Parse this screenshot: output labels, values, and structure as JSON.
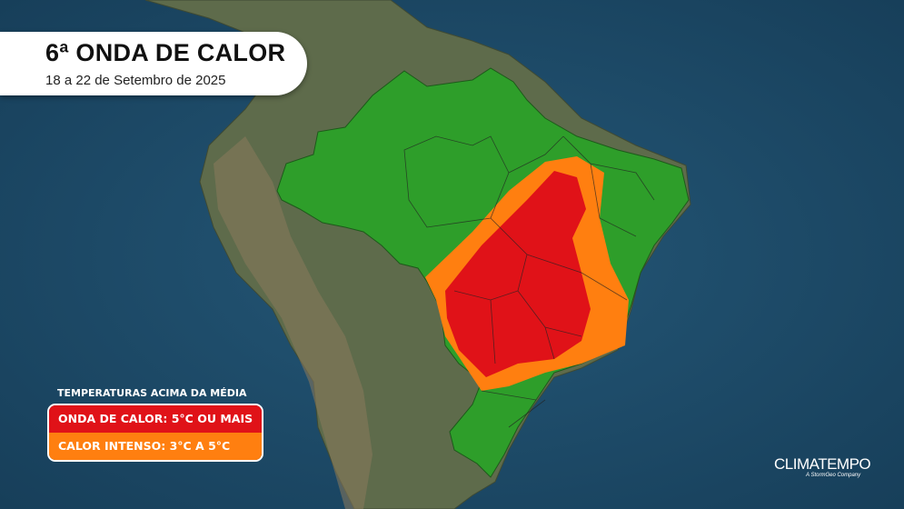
{
  "header": {
    "title": "6ª ONDA DE CALOR",
    "subtitle": "18 a 22 de Setembro de 2025"
  },
  "legend": {
    "title": "TEMPERATURAS ACIMA DA MÉDIA",
    "items": [
      {
        "label": "ONDA DE CALOR: 5°C OU MAIS",
        "color": "#e01218"
      },
      {
        "label": "CALOR INTENSO: 3°C A 5°C",
        "color": "#ff7f10"
      }
    ]
  },
  "colors": {
    "ocean": "#1d4a68",
    "land": "#5b6a4a",
    "brazil": "#2e9e2a",
    "heat_wave": "#e01218",
    "intense_heat": "#ff7f10"
  },
  "logo": {
    "name": "CLIMATEMPO",
    "tagline": "A StormGeo Company"
  }
}
